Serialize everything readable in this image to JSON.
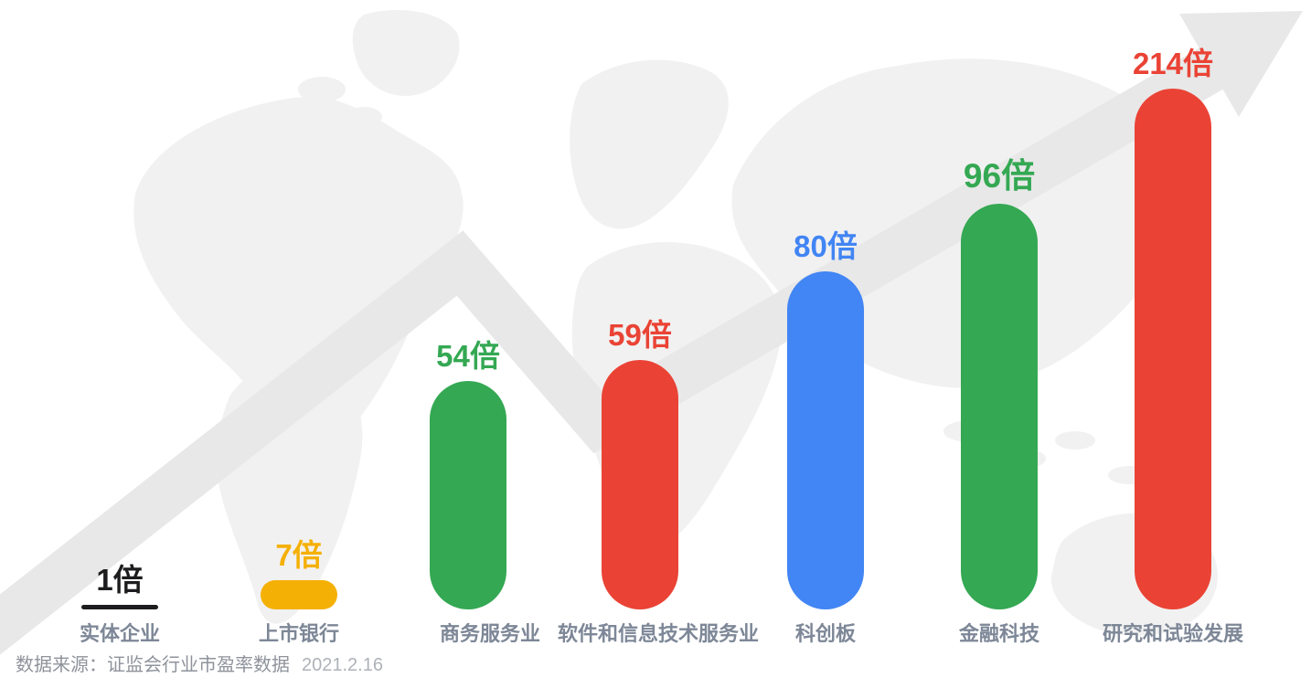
{
  "chart_data": {
    "type": "bar",
    "title": "",
    "xlabel": "",
    "ylabel": "",
    "unit_suffix": "倍",
    "axis": "none",
    "legend": null,
    "categories": [
      "实体企业",
      "上市银行",
      "商务服务业",
      "软件和信息技术服务业",
      "科创板",
      "金融科技",
      "研究和试验发展"
    ],
    "values": [
      1,
      7,
      54,
      59,
      80,
      96,
      214
    ],
    "items": [
      {
        "category": "实体企业",
        "value": 1,
        "value_label": "1倍",
        "color": "#1D1D1F"
      },
      {
        "category": "上市银行",
        "value": 7,
        "value_label": "7倍",
        "color": "#F5B005"
      },
      {
        "category": "商务服务业",
        "value": 54,
        "value_label": "54倍",
        "color": "#34A853"
      },
      {
        "category": "软件和信息技术服务业",
        "value": 59,
        "value_label": "59倍",
        "color": "#EA4335"
      },
      {
        "category": "科创板",
        "value": 80,
        "value_label": "80倍",
        "color": "#4285F4"
      },
      {
        "category": "金融科技",
        "value": 96,
        "value_label": "96倍",
        "color": "#34A853"
      },
      {
        "category": "研究和试验发展",
        "value": 214,
        "value_label": "214倍",
        "color": "#EA4335"
      }
    ],
    "decorations": [
      "world-map",
      "upward-trend-arrow"
    ]
  },
  "footer": {
    "source_text": "数据来源：证监会行业市盈率数据",
    "source_date": "2021.2.16"
  },
  "style": {
    "background": "#FFFFFF",
    "label_color": "#7D8797",
    "source_color": "#8E939B",
    "date_color": "#AEB2B8",
    "map_color": "#F1F1F1",
    "arrow_color": "#E8E8E8"
  }
}
